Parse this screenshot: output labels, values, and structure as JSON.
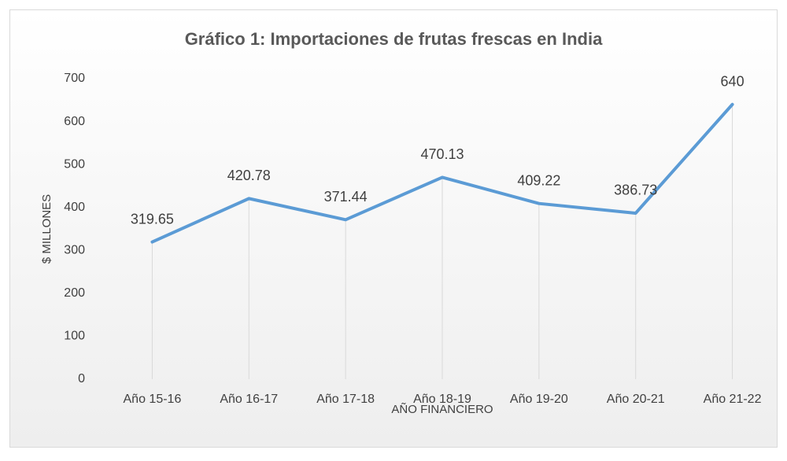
{
  "chart_data": {
    "type": "line",
    "title": "Gráfico 1: Importaciones de frutas frescas en India",
    "x_label": "AÑO FINANCIERO",
    "y_label": "$ MILLONES",
    "categories": [
      "Año 15-16",
      "Año 16-17",
      "Año 17-18",
      "Año 18-19",
      "Año 19-20",
      "Año 20-21",
      "Año 21-22"
    ],
    "values": [
      319.65,
      420.78,
      371.44,
      470.13,
      409.22,
      386.73,
      640
    ],
    "color": "#5b9bd5",
    "ylim": [
      0,
      700
    ],
    "yticks": [
      0,
      100,
      200,
      300,
      400,
      500,
      600,
      700
    ],
    "drop_lines": true
  }
}
